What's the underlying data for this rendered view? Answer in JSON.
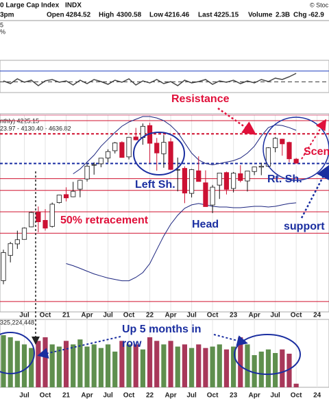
{
  "header": {
    "title": "0 Large Cap Index",
    "symbol": "INDX",
    "copyright": "© Stoc",
    "time": "3pm",
    "open_label": "Open",
    "high_label": "High",
    "low_label": "Low",
    "last_label": "Last",
    "volume_label": "Volume",
    "volume": "2.3B",
    "chg_label": "Chg",
    "chg": "-62.9",
    "fragments": [
      "5",
      "%"
    ]
  },
  "chart_data": [
    {
      "type": "line",
      "color": "#444444",
      "ylim": [
        30,
        90
      ],
      "levels": [
        {
          "value": 70,
          "color": "#1f3fbf",
          "dashed": false
        },
        {
          "value": 50,
          "color": "#333333",
          "dashed": true
        }
      ],
      "values": [
        51.7,
        46.6,
        55.5,
        49.1,
        53.0,
        42.8,
        51.7,
        54.3,
        49.1,
        51.7,
        44.0,
        53.0,
        46.6,
        54.3,
        50.4,
        45.3,
        53.0,
        49.1,
        55.5,
        44.0,
        51.7,
        47.9,
        54.3,
        46.6,
        50.4,
        42.8,
        53.0,
        47.9,
        50.4,
        54.3,
        45.3,
        51.7,
        49.1,
        53.0,
        46.6,
        51.7,
        47.9,
        54.3,
        50.4,
        56.8,
        54.3,
        59.4,
        65.7
      ]
    },
    {
      "type": "candlestick",
      "ylim": [
        2040,
        4950
      ],
      "up_color": "#ffffff",
      "down_color": "#cc1133",
      "band_color": "#1a237e",
      "legend": [
        "nthly) 4225.15",
        "23.97 - 4130.40 - 4636.82"
      ],
      "categories": [
        null,
        null,
        null,
        "Jul",
        null,
        null,
        "Oct",
        null,
        null,
        "21",
        null,
        null,
        "Apr",
        null,
        null,
        "Jul",
        null,
        null,
        "Oct",
        null,
        null,
        "22",
        null,
        null,
        "Apr",
        null,
        null,
        "Jul",
        null,
        null,
        "Oct",
        null,
        null,
        "23",
        null,
        null,
        "Apr",
        null,
        null,
        "Jul",
        null,
        null,
        "Oct",
        null,
        null,
        "24"
      ],
      "open": [
        2499,
        2869,
        3038,
        3105,
        3289,
        3507,
        3385,
        3296,
        3645,
        3764,
        3731,
        3842,
        3992,
        4193,
        4216,
        4300,
        4407,
        4529,
        4317,
        4610,
        4602,
        4778,
        4519,
        4363,
        4540,
        4131,
        4149,
        3781,
        4113,
        3937,
        3610,
        3902,
        4087,
        3853,
        4071,
        3963,
        4102,
        4166,
        4181,
        4451,
        4578,
        4530,
        4284.52,
        null,
        null,
        null
      ],
      "high": [
        2954,
        3068,
        3233,
        3280,
        3514,
        3588,
        3550,
        3646,
        3760,
        3870,
        3950,
        3981,
        4219,
        4238,
        4302,
        4429,
        4537,
        4546,
        4608,
        4743,
        4808,
        4818,
        4595,
        4637,
        4593,
        4307,
        4178,
        4140,
        4325,
        4119,
        3905,
        4080,
        4101,
        4095,
        4195,
        4110,
        4170,
        4231,
        4458,
        4607,
        4584,
        4541,
        4300.58,
        null,
        null,
        null
      ],
      "low": [
        2447,
        2767,
        2965,
        3101,
        3284,
        3209,
        3234,
        3280,
        3633,
        3663,
        3725,
        3723,
        3955,
        4056,
        4165,
        4233,
        4367,
        4306,
        4279,
        4560,
        4495,
        4222,
        4115,
        4157,
        4124,
        3811,
        3637,
        3721,
        3955,
        3585,
        3491,
        3699,
        3765,
        3795,
        3943,
        3809,
        4049,
        4048,
        4167,
        4385,
        4335,
        4238,
        4216.46,
        null,
        null,
        null
      ],
      "close": [
        2912,
        3044,
        3100,
        3271,
        3500,
        3363,
        3270,
        3622,
        3756,
        3714,
        3811,
        3973,
        4181,
        4204,
        4298,
        4395,
        4523,
        4308,
        4605,
        4567,
        4766,
        4516,
        4374,
        4530,
        4132,
        4132,
        3785,
        4130,
        3955,
        3586,
        3872,
        4080,
        3840,
        4077,
        3970,
        4109,
        4169,
        4180,
        4450,
        4589,
        4508,
        4288,
        4225.15,
        null,
        null,
        null
      ],
      "upper_band": [
        null,
        null,
        null,
        null,
        null,
        null,
        null,
        null,
        null,
        null,
        4068,
        4139,
        4240,
        4342,
        4474,
        4575,
        4676,
        4768,
        4829,
        4869,
        4910,
        4910,
        4889,
        4849,
        4778,
        4676,
        4524,
        4372,
        4271,
        4220,
        4200,
        4220,
        4240,
        4261,
        4301,
        4372,
        4474,
        4626,
        4747,
        4788,
        4778,
        4747,
        4707,
        null,
        null,
        null
      ],
      "lower_band": [
        null,
        null,
        null,
        null,
        null,
        null,
        null,
        null,
        null,
        2750,
        2719,
        2679,
        2638,
        2598,
        2567,
        2537,
        2517,
        2497,
        2497,
        2547,
        2618,
        2750,
        2953,
        3156,
        3328,
        3460,
        3561,
        3612,
        3632,
        3612,
        3591,
        3581,
        3581,
        3571,
        3571,
        3581,
        3591,
        3591,
        3581,
        3591,
        3612,
        3632,
        3642,
        null,
        null,
        null
      ],
      "levels": [
        {
          "value": 4930,
          "color": "#e07090",
          "dashed": false
        },
        {
          "value": 4849,
          "color": "#d0102e",
          "dashed": false
        },
        {
          "value": 4656,
          "color": "#d0102e",
          "dashed": true
        },
        {
          "value": 4220,
          "color": "#1428a0",
          "dashed": true
        },
        {
          "value": 3997,
          "color": "#d0102e",
          "dashed": false
        },
        {
          "value": 3825,
          "color": "#d0102e",
          "dashed": false
        },
        {
          "value": 3510,
          "color": "#d0102e",
          "dashed": false
        },
        {
          "value": 3196,
          "color": "#d0102e",
          "dashed": false
        },
        {
          "value": 2192,
          "color": "#d0102e",
          "dashed": false
        }
      ],
      "annotations": {
        "resistance": "Resistance",
        "left": "Left Sh.",
        "head": "Head",
        "right": "Rt. Sh.",
        "retracement": "50% retracement",
        "support": "support",
        "scenario": "Scen"
      }
    },
    {
      "type": "bar",
      "ylim": [
        0,
        100
      ],
      "up_color": "#5f8f4e",
      "down_color": "#a8385a",
      "label": "325,224,448",
      "annotation": [
        "Up 5 months in",
        "row"
      ],
      "categories": [
        null,
        null,
        null,
        "Jul",
        null,
        null,
        "Oct",
        null,
        null,
        "21",
        null,
        null,
        "Apr",
        null,
        null,
        "Jul",
        null,
        null,
        "Oct",
        null,
        null,
        "22",
        null,
        null,
        "Apr",
        null,
        null,
        "Jul",
        null,
        null,
        "Oct",
        null,
        null,
        "23",
        null,
        null,
        "Apr",
        null,
        null,
        "Jul",
        null,
        null,
        "Oct",
        null,
        null,
        "24"
      ],
      "values": [
        76.8,
        73.7,
        68.4,
        63.2,
        57.9,
        68.4,
        73.7,
        63.2,
        60,
        68.4,
        63.2,
        70.5,
        60,
        63.2,
        57.9,
        63.2,
        52.6,
        68.4,
        63.2,
        63.2,
        55.8,
        73.7,
        68.4,
        63.2,
        68.4,
        60,
        63.2,
        57.9,
        63.2,
        57.9,
        60,
        63.2,
        55.8,
        60,
        73.7,
        63.2,
        47.4,
        52.6,
        55.8,
        50.5,
        55.8,
        49.5,
        5.3,
        null,
        null,
        null
      ]
    }
  ]
}
